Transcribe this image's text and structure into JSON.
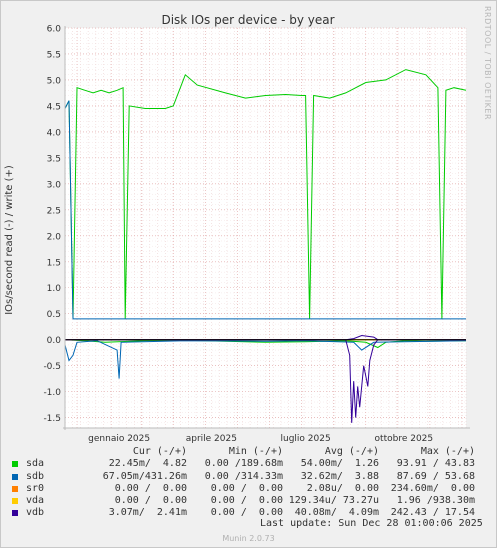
{
  "chart_data": {
    "type": "line",
    "title": "Disk IOs per device - by year",
    "ylabel": "IOs/second read (-) / write (+)",
    "ylim": [
      -1.7,
      6.0
    ],
    "y_ticks": [
      "6.0",
      "5.5",
      "5.0",
      "4.5",
      "4.0",
      "3.5",
      "3.0",
      "2.5",
      "2.0",
      "1.5",
      "1.0",
      "0.5",
      "0.0",
      "-0.5",
      "-1.0",
      "-1.5"
    ],
    "x_ticks": [
      "gennaio 2025",
      "aprile 2025",
      "luglio 2025",
      "ottobre 2025"
    ],
    "grid": true,
    "series": [
      {
        "name": "sda",
        "color": "#00cc00",
        "write": [
          [
            0.0,
            4.45
          ],
          [
            0.01,
            4.6
          ],
          [
            0.02,
            0.4
          ],
          [
            0.03,
            4.85
          ],
          [
            0.05,
            4.8
          ],
          [
            0.07,
            4.75
          ],
          [
            0.09,
            4.8
          ],
          [
            0.11,
            4.75
          ],
          [
            0.13,
            4.8
          ],
          [
            0.145,
            4.85
          ],
          [
            0.15,
            0.4
          ],
          [
            0.16,
            4.5
          ],
          [
            0.2,
            4.45
          ],
          [
            0.25,
            4.45
          ],
          [
            0.27,
            4.5
          ],
          [
            0.3,
            5.1
          ],
          [
            0.33,
            4.9
          ],
          [
            0.4,
            4.75
          ],
          [
            0.45,
            4.65
          ],
          [
            0.5,
            4.7
          ],
          [
            0.55,
            4.72
          ],
          [
            0.59,
            4.7
          ],
          [
            0.6,
            4.7
          ],
          [
            0.61,
            0.4
          ],
          [
            0.62,
            4.7
          ],
          [
            0.66,
            4.65
          ],
          [
            0.7,
            4.75
          ],
          [
            0.75,
            4.95
          ],
          [
            0.8,
            5.0
          ],
          [
            0.85,
            5.2
          ],
          [
            0.9,
            5.1
          ],
          [
            0.93,
            4.85
          ],
          [
            0.94,
            0.4
          ],
          [
            0.95,
            4.8
          ],
          [
            0.97,
            4.85
          ],
          [
            1.0,
            4.8
          ]
        ],
        "read": [
          [
            0.0,
            0.0
          ],
          [
            0.05,
            -0.02
          ],
          [
            0.1,
            -0.05
          ],
          [
            0.2,
            -0.02
          ],
          [
            0.3,
            -0.01
          ],
          [
            0.4,
            -0.03
          ],
          [
            0.5,
            -0.05
          ],
          [
            0.6,
            -0.04
          ],
          [
            0.7,
            -0.02
          ],
          [
            0.75,
            -0.05
          ],
          [
            0.78,
            -0.15
          ],
          [
            0.8,
            -0.05
          ],
          [
            0.85,
            -0.02
          ],
          [
            0.9,
            -0.03
          ],
          [
            1.0,
            -0.02
          ]
        ]
      },
      {
        "name": "sdb",
        "color": "#0066b3",
        "write": [
          [
            0.0,
            4.45
          ],
          [
            0.01,
            4.6
          ],
          [
            0.02,
            0.4
          ],
          [
            0.03,
            0.4
          ],
          [
            0.14,
            0.4
          ],
          [
            0.15,
            0.4
          ],
          [
            0.16,
            0.4
          ],
          [
            0.6,
            0.4
          ],
          [
            0.61,
            0.4
          ],
          [
            0.94,
            0.4
          ],
          [
            1.0,
            0.4
          ]
        ],
        "read": [
          [
            0.0,
            -0.1
          ],
          [
            0.01,
            -0.4
          ],
          [
            0.02,
            -0.3
          ],
          [
            0.03,
            -0.05
          ],
          [
            0.08,
            -0.02
          ],
          [
            0.13,
            -0.2
          ],
          [
            0.135,
            -0.75
          ],
          [
            0.14,
            -0.05
          ],
          [
            0.3,
            -0.02
          ],
          [
            0.5,
            -0.03
          ],
          [
            0.6,
            -0.02
          ],
          [
            0.72,
            -0.05
          ],
          [
            0.74,
            -0.2
          ],
          [
            0.77,
            -0.05
          ],
          [
            1.0,
            -0.02
          ]
        ]
      },
      {
        "name": "sr0",
        "color": "#ff8000",
        "write": [
          [
            0.0,
            0.0
          ],
          [
            1.0,
            0.0
          ]
        ],
        "read": [
          [
            0.0,
            0.0
          ],
          [
            1.0,
            0.0
          ]
        ]
      },
      {
        "name": "vda",
        "color": "#ffcc00",
        "write": [
          [
            0.0,
            0.0
          ],
          [
            1.0,
            0.0
          ]
        ],
        "read": [
          [
            0.0,
            0.0
          ],
          [
            1.0,
            0.0
          ]
        ]
      },
      {
        "name": "vdb",
        "color": "#330099",
        "write": [
          [
            0.0,
            0.0
          ],
          [
            0.7,
            0.0
          ],
          [
            0.72,
            0.02
          ],
          [
            0.74,
            0.08
          ],
          [
            0.77,
            0.05
          ],
          [
            0.78,
            0.0
          ],
          [
            1.0,
            0.0
          ]
        ],
        "read": [
          [
            0.0,
            0.0
          ],
          [
            0.7,
            0.0
          ],
          [
            0.71,
            -0.3
          ],
          [
            0.715,
            -1.6
          ],
          [
            0.72,
            -0.8
          ],
          [
            0.725,
            -1.5
          ],
          [
            0.73,
            -0.9
          ],
          [
            0.735,
            -1.3
          ],
          [
            0.74,
            -0.9
          ],
          [
            0.745,
            -0.5
          ],
          [
            0.75,
            -0.7
          ],
          [
            0.755,
            -0.9
          ],
          [
            0.76,
            -0.4
          ],
          [
            0.77,
            -0.1
          ],
          [
            0.78,
            0.0
          ],
          [
            1.0,
            0.0
          ]
        ]
      }
    ]
  },
  "legend": {
    "headers": {
      "cur": "Cur (-/+)",
      "min": "Min (-/+)",
      "avg": "Avg (-/+)",
      "max": "Max (-/+)"
    },
    "rows": [
      {
        "name": "sda",
        "color": "#00cc00",
        "cur": "22.45m/  4.82",
        "min": "0.00 /189.68m",
        "avg": "54.00m/  1.26",
        "max": "93.91 / 43.83"
      },
      {
        "name": "sdb",
        "color": "#0066b3",
        "cur": "67.05m/431.26m",
        "min": "0.00 /314.33m",
        "avg": "32.62m/  3.88",
        "max": "87.69 / 53.68"
      },
      {
        "name": "sr0",
        "color": "#ff8000",
        "cur": "0.00 /  0.00",
        "min": "0.00 /  0.00",
        "avg": "2.08u/  0.00",
        "max": "234.60m/  0.00"
      },
      {
        "name": "vda",
        "color": "#ffcc00",
        "cur": "0.00 /  0.00",
        "min": "0.00 /  0.00",
        "avg": "129.34u/ 73.27u",
        "max": "1.96 /938.30m"
      },
      {
        "name": "vdb",
        "color": "#330099",
        "cur": "3.07m/  2.41m",
        "min": "0.00 /  0.00",
        "avg": "40.08m/  4.09m",
        "max": "242.43 / 17.54"
      }
    ]
  },
  "last_update": "Last update: Sun Dec 28 01:00:06 2025",
  "munin_version": "Munin 2.0.73",
  "watermark": "RRDTOOL / TOBI OETIKER"
}
